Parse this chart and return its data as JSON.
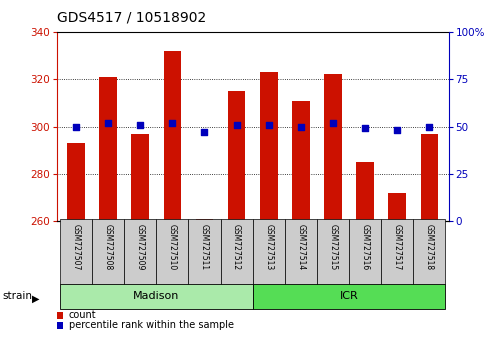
{
  "title": "GDS4517 / 10518902",
  "samples": [
    "GSM727507",
    "GSM727508",
    "GSM727509",
    "GSM727510",
    "GSM727511",
    "GSM727512",
    "GSM727513",
    "GSM727514",
    "GSM727515",
    "GSM727516",
    "GSM727517",
    "GSM727518"
  ],
  "counts": [
    293,
    321,
    297,
    332,
    261,
    315,
    323,
    311,
    322,
    285,
    272,
    297
  ],
  "percentiles": [
    50,
    52,
    51,
    52,
    47,
    51,
    51,
    50,
    52,
    49,
    48,
    50
  ],
  "groups": [
    {
      "label": "Madison",
      "start": 0,
      "end": 6,
      "color": "#aaeaaa"
    },
    {
      "label": "ICR",
      "start": 6,
      "end": 12,
      "color": "#55dd55"
    }
  ],
  "ylim_left": [
    260,
    340
  ],
  "ylim_right": [
    0,
    100
  ],
  "yticks_left": [
    260,
    280,
    300,
    320,
    340
  ],
  "yticks_right": [
    0,
    25,
    50,
    75,
    100
  ],
  "bar_color": "#cc1100",
  "dot_color": "#0000bb",
  "title_fontsize": 10,
  "axis_color_left": "#cc1100",
  "axis_color_right": "#0000bb",
  "grid_color": "#000000",
  "legend_items": [
    "count",
    "percentile rank within the sample"
  ],
  "xlim": [
    -0.6,
    11.6
  ]
}
